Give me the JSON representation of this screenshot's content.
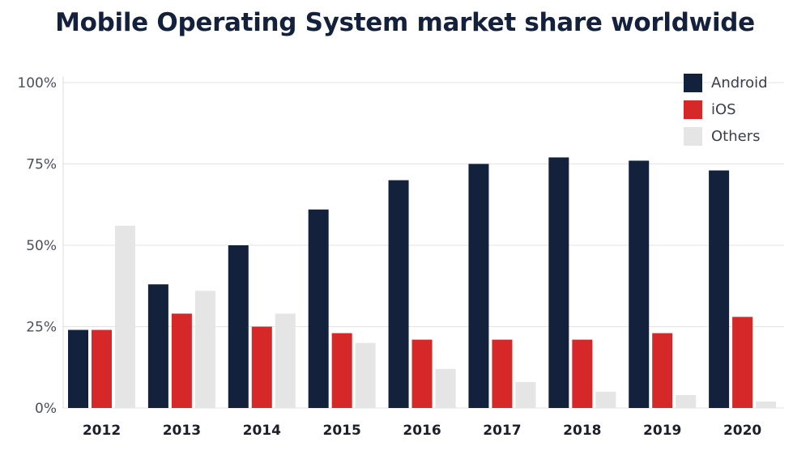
{
  "chart_data": {
    "type": "bar",
    "title": "Mobile Operating System market share worldwide",
    "categories": [
      "2012",
      "2013",
      "2014",
      "2015",
      "2016",
      "2017",
      "2018",
      "2019",
      "2020"
    ],
    "series": [
      {
        "name": "Android",
        "color": "#14213d",
        "values": [
          24,
          38,
          50,
          61,
          70,
          75,
          77,
          76,
          73
        ]
      },
      {
        "name": "iOS",
        "color": "#d62828",
        "values": [
          24,
          29,
          25,
          23,
          21,
          21,
          21,
          23,
          28
        ]
      },
      {
        "name": "Others",
        "color": "#e5e5e5",
        "values": [
          56,
          36,
          29,
          20,
          12,
          8,
          5,
          4,
          2
        ]
      }
    ],
    "y_ticks": [
      "0%",
      "25%",
      "50%",
      "75%",
      "100%"
    ],
    "ylim": [
      0,
      100
    ],
    "grid": true,
    "legend_position": "top-right"
  }
}
